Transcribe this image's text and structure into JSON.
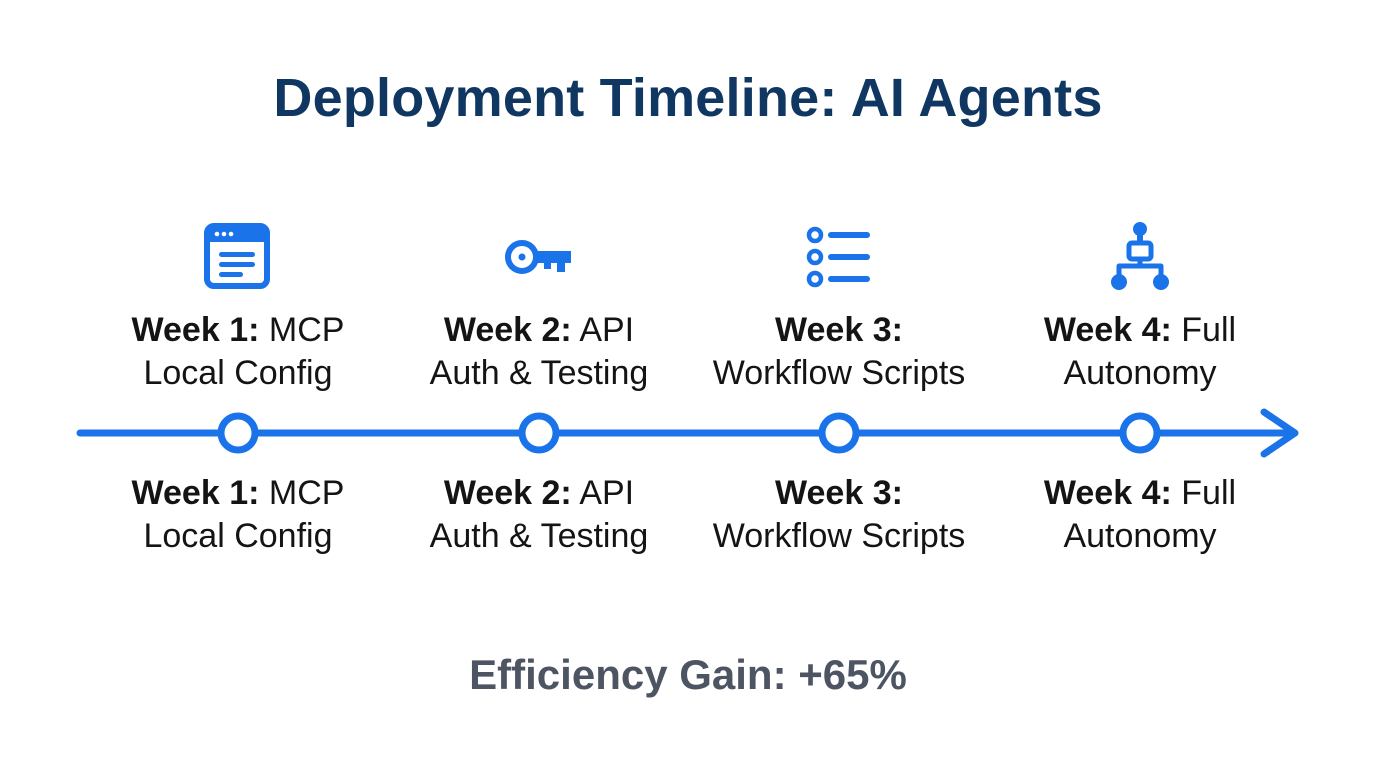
{
  "title": "Deployment Timeline: AI Agents",
  "accent_color": "#1a73e8",
  "milestones": [
    {
      "icon": "browser-window-icon",
      "week": "Week 1:",
      "rest": "MCP",
      "line2": "Local Config"
    },
    {
      "icon": "key-icon",
      "week": "Week 2:",
      "rest": "API",
      "line2": "Auth & Testing"
    },
    {
      "icon": "list-icon",
      "week": "Week 3:",
      "rest": "",
      "line2": "Workflow Scripts"
    },
    {
      "icon": "network-hierarchy-icon",
      "week": "Week 4:",
      "rest": "Full",
      "line2": "Autonomy"
    }
  ],
  "footer": "Efficiency Gain: +65%"
}
